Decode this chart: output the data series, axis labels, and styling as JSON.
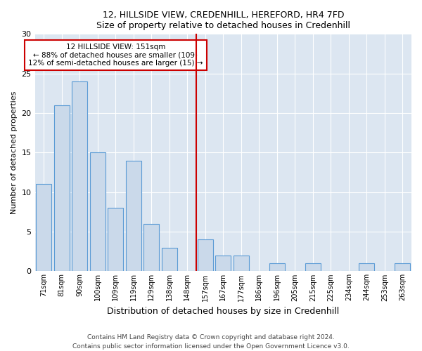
{
  "title": "12, HILLSIDE VIEW, CREDENHILL, HEREFORD, HR4 7FD",
  "subtitle": "Size of property relative to detached houses in Credenhill",
  "xlabel": "Distribution of detached houses by size in Credenhill",
  "ylabel": "Number of detached properties",
  "counts": [
    11,
    21,
    24,
    15,
    8,
    14,
    6,
    3,
    0,
    4,
    2,
    2,
    0,
    1,
    0,
    1,
    0,
    0,
    1,
    0,
    1
  ],
  "bar_color": "#cad9ea",
  "bar_edge_color": "#5b9bd5",
  "background_color": "#dce6f1",
  "fig_background_color": "#ffffff",
  "property_bin_index": 8,
  "property_line_color": "#cc0000",
  "annotation_text": "12 HILLSIDE VIEW: 151sqm\n← 88% of detached houses are smaller (109)\n12% of semi-detached houses are larger (15) →",
  "annotation_box_color": "#ffffff",
  "annotation_box_edge_color": "#cc0000",
  "ylim": [
    0,
    30
  ],
  "yticks": [
    0,
    5,
    10,
    15,
    20,
    25,
    30
  ],
  "footer": "Contains HM Land Registry data © Crown copyright and database right 2024.\nContains public sector information licensed under the Open Government Licence v3.0.",
  "tick_labels": [
    "71sqm",
    "81sqm",
    "90sqm",
    "100sqm",
    "109sqm",
    "119sqm",
    "129sqm",
    "138sqm",
    "148sqm",
    "157sqm",
    "167sqm",
    "177sqm",
    "186sqm",
    "196sqm",
    "205sqm",
    "215sqm",
    "225sqm",
    "234sqm",
    "244sqm",
    "253sqm",
    "263sqm"
  ]
}
